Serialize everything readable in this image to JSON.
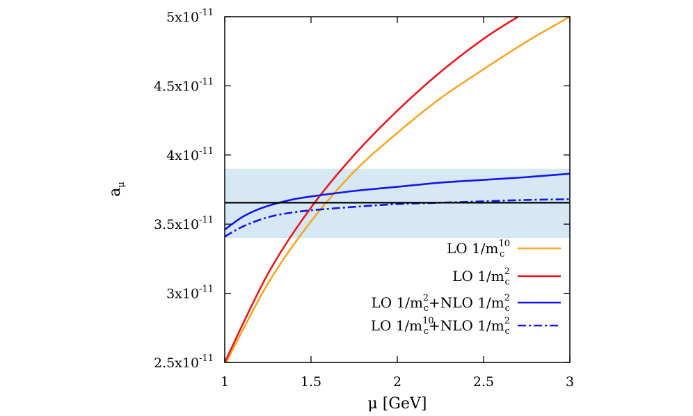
{
  "chart_data": {
    "type": "line",
    "xlabel": "μ [GeV]",
    "ylabel": {
      "base": "a",
      "sub": "μ"
    },
    "xlim": [
      1,
      3
    ],
    "ylim": [
      2.5e-11,
      5e-11
    ],
    "x_ticks": [
      {
        "value": 1,
        "label": "1"
      },
      {
        "value": 1.5,
        "label": "1.5"
      },
      {
        "value": 2,
        "label": "2"
      },
      {
        "value": 2.5,
        "label": "2.5"
      },
      {
        "value": 3,
        "label": "3"
      }
    ],
    "y_ticks": [
      {
        "value": 2.5e-11,
        "mantissa": "2.5x10",
        "exp": "-11"
      },
      {
        "value": 3e-11,
        "mantissa": "3x10",
        "exp": "-11"
      },
      {
        "value": 3.5e-11,
        "mantissa": "3.5x10",
        "exp": "-11"
      },
      {
        "value": 4e-11,
        "mantissa": "4x10",
        "exp": "-11"
      },
      {
        "value": 4.5e-11,
        "mantissa": "4.5x10",
        "exp": "-11"
      },
      {
        "value": 5e-11,
        "mantissa": "5x10",
        "exp": "-11"
      }
    ],
    "band": {
      "ymin": 3.4e-11,
      "ymax": 3.9e-11,
      "color": "#d6e8f3"
    },
    "reference_line": {
      "y": 3.655e-11,
      "color": "#000000"
    },
    "legend_position": "bottom-right",
    "series": [
      {
        "legend": {
          "main": "LO 1/m",
          "sub": "c",
          "sup": "10",
          "rest": ""
        },
        "color": "#f5a623",
        "dash": "solid",
        "x": [
          1.0,
          1.25,
          1.5,
          1.75,
          2.0,
          2.25,
          2.5,
          2.75,
          3.0
        ],
        "y": [
          2.48e-11,
          3.07e-11,
          3.52e-11,
          3.88e-11,
          4.16e-11,
          4.41e-11,
          4.62e-11,
          4.82e-11,
          5e-11
        ]
      },
      {
        "legend": {
          "main": "LO 1/m",
          "sub": "c",
          "sup": "2",
          "rest": ""
        },
        "color": "#e8161c",
        "dash": "solid",
        "x": [
          1.0,
          1.25,
          1.5,
          1.75,
          2.0,
          2.25,
          2.5,
          2.7
        ],
        "y": [
          2.5e-11,
          3.14e-11,
          3.62e-11,
          4e-11,
          4.32e-11,
          4.6e-11,
          4.84e-11,
          5e-11
        ]
      },
      {
        "legend": {
          "main": "LO 1/m",
          "sub": "c",
          "sup": "2",
          "rest": "+NLO 1/m",
          "sub2": "c",
          "sup2": "2"
        },
        "color": "#1414e6",
        "dash": "solid",
        "x": [
          1.0,
          1.1,
          1.2,
          1.3,
          1.4,
          1.5,
          1.75,
          2.0,
          2.25,
          2.5,
          2.75,
          3.0
        ],
        "y": [
          3.46e-11,
          3.55e-11,
          3.61e-11,
          3.65e-11,
          3.68e-11,
          3.7e-11,
          3.74e-11,
          3.77e-11,
          3.8e-11,
          3.82e-11,
          3.84e-11,
          3.865e-11
        ]
      },
      {
        "legend": {
          "main": "LO 1/m",
          "sub": "c",
          "sup": "10",
          "rest": "+NLO 1/m",
          "sub2": "c",
          "sup2": "2"
        },
        "color": "#1414e6",
        "dash": "dashdot",
        "x": [
          1.0,
          1.1,
          1.2,
          1.3,
          1.4,
          1.5,
          1.75,
          2.0,
          2.25,
          2.5,
          2.75,
          3.0
        ],
        "y": [
          3.41e-11,
          3.48e-11,
          3.53e-11,
          3.565e-11,
          3.585e-11,
          3.6e-11,
          3.625e-11,
          3.645e-11,
          3.655e-11,
          3.665e-11,
          3.675e-11,
          3.68e-11
        ]
      }
    ]
  }
}
